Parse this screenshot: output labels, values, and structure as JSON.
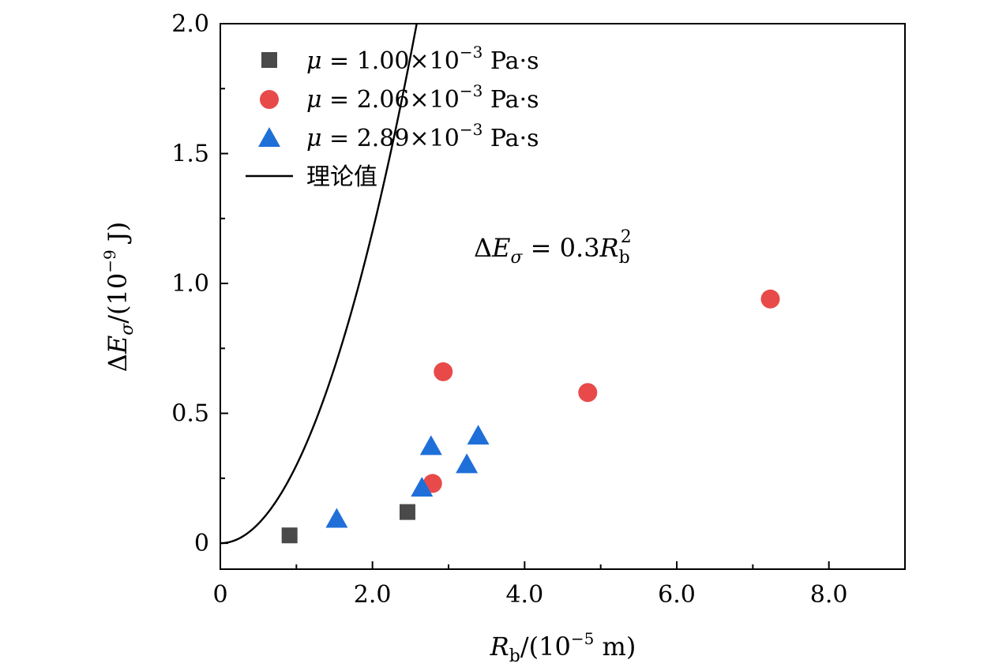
{
  "chart_data": {
    "type": "scatter",
    "xlabel": "R_b/(10^-5 m)",
    "ylabel": "ΔE_σ/(10^-9 J)",
    "xlim": [
      0,
      9.0
    ],
    "ylim": [
      -0.1,
      2.0
    ],
    "x_ticks": [
      0,
      2.0,
      4.0,
      6.0,
      8.0
    ],
    "x_tick_labels": [
      "0",
      "2.0",
      "4.0",
      "6.0",
      "8.0"
    ],
    "y_ticks": [
      0,
      0.5,
      1.0,
      1.5,
      2.0
    ],
    "y_tick_labels": [
      "0",
      "0.5",
      "1.0",
      "1.5",
      "2.0"
    ],
    "legend_position": "top-left",
    "series": [
      {
        "name": "μ = 1.00×10^-3 Pa·s",
        "marker": "square",
        "color": "#4a4a4a",
        "points": [
          [
            0.91,
            0.03
          ],
          [
            2.46,
            0.12
          ]
        ]
      },
      {
        "name": "μ = 2.06×10^-3 Pa·s",
        "marker": "circle",
        "color": "#e84a4a",
        "points": [
          [
            2.79,
            0.23
          ],
          [
            2.93,
            0.66
          ],
          [
            4.83,
            0.58
          ],
          [
            7.23,
            0.94
          ]
        ]
      },
      {
        "name": "μ = 2.89×10^-3 Pa·s",
        "marker": "triangle",
        "color": "#1f6fd8",
        "points": [
          [
            1.53,
            0.09
          ],
          [
            2.65,
            0.21
          ],
          [
            2.77,
            0.37
          ],
          [
            3.24,
            0.3
          ],
          [
            3.39,
            0.41
          ]
        ]
      }
    ],
    "curve": {
      "name": "理论值",
      "equation": "ΔE_σ = 0.3 R_b^2",
      "coefficient": 0.3,
      "exponent": 2,
      "color": "#000000"
    }
  }
}
